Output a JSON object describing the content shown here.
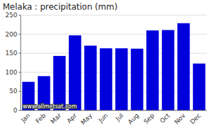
{
  "chart_data": {
    "type": "bar",
    "title": "Melaka : precipitation (mm)",
    "categories": [
      "Jan",
      "Feb",
      "Mar",
      "Apr",
      "May",
      "Jun",
      "Jul",
      "Aug",
      "Sep",
      "Oct",
      "Nov",
      "Dec"
    ],
    "values": [
      75,
      90,
      143,
      197,
      170,
      163,
      163,
      162,
      210,
      211,
      229,
      123
    ],
    "color": "#0000dd",
    "ylim": [
      0,
      250
    ],
    "yticks": [
      0,
      50,
      100,
      150,
      200,
      250
    ],
    "grid": true,
    "annotations": [
      "www.allmetsat.com"
    ]
  }
}
